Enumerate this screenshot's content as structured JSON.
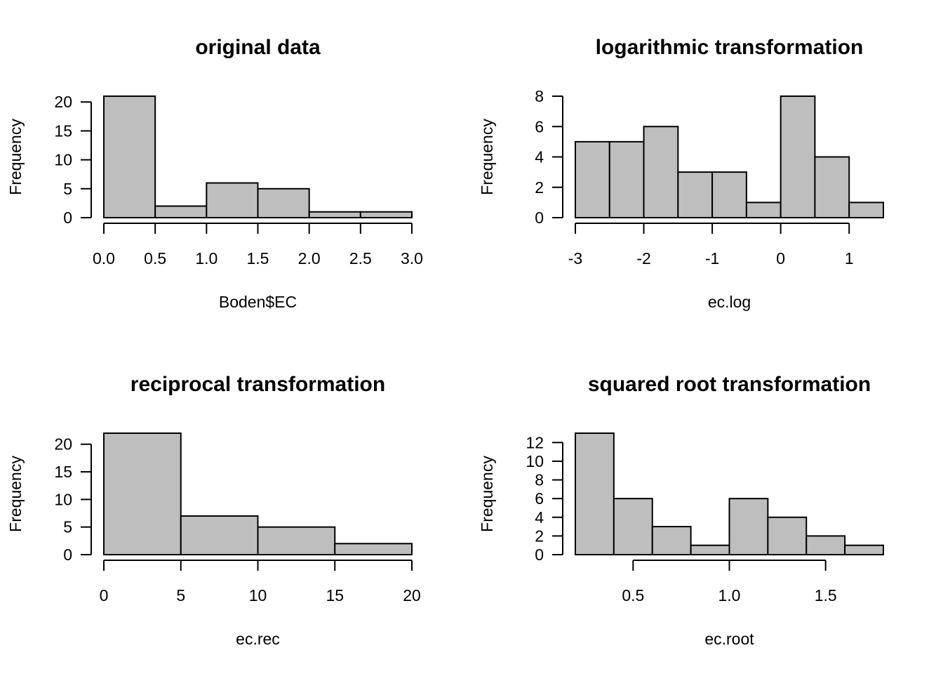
{
  "chart_data": [
    {
      "type": "bar",
      "title": "original data",
      "xlabel": "Boden$EC",
      "ylabel": "Frequency",
      "breaks": [
        0.0,
        0.5,
        1.0,
        1.5,
        2.0,
        2.5,
        3.0
      ],
      "values": [
        21,
        2,
        6,
        5,
        1,
        1
      ],
      "xticks": [
        0.0,
        0.5,
        1.0,
        1.5,
        2.0,
        2.5,
        3.0
      ],
      "xtick_labels": [
        "0.0",
        "0.5",
        "1.0",
        "1.5",
        "2.0",
        "2.5",
        "3.0"
      ],
      "yticks": [
        0,
        5,
        10,
        15,
        20
      ],
      "ytick_labels": [
        "0",
        "5",
        "10",
        "15",
        "20"
      ],
      "xlim": [
        0.0,
        3.0
      ],
      "ylim": [
        0,
        21
      ]
    },
    {
      "type": "bar",
      "title": "logarithmic transformation",
      "xlabel": "ec.log",
      "ylabel": "Frequency",
      "breaks": [
        -3.0,
        -2.5,
        -2.0,
        -1.5,
        -1.0,
        -0.5,
        0.0,
        0.5,
        1.0,
        1.5
      ],
      "values": [
        5,
        5,
        6,
        3,
        3,
        1,
        8,
        4,
        1
      ],
      "xticks": [
        -3,
        -2,
        -1,
        0,
        1
      ],
      "xtick_labels": [
        "-3",
        "-2",
        "-1",
        "0",
        "1"
      ],
      "yticks": [
        0,
        2,
        4,
        6,
        8
      ],
      "ytick_labels": [
        "0",
        "2",
        "4",
        "6",
        "8"
      ],
      "xlim": [
        -3.0,
        1.5
      ],
      "ylim": [
        0,
        8
      ]
    },
    {
      "type": "bar",
      "title": "reciprocal transformation",
      "xlabel": "ec.rec",
      "ylabel": "Frequency",
      "breaks": [
        0,
        5,
        10,
        15,
        20
      ],
      "values": [
        22,
        7,
        5,
        2
      ],
      "xticks": [
        0,
        5,
        10,
        15,
        20
      ],
      "xtick_labels": [
        "0",
        "5",
        "10",
        "15",
        "20"
      ],
      "yticks": [
        0,
        5,
        10,
        15,
        20
      ],
      "ytick_labels": [
        "0",
        "5",
        "10",
        "15",
        "20"
      ],
      "xlim": [
        0,
        20
      ],
      "ylim": [
        0,
        22
      ]
    },
    {
      "type": "bar",
      "title": "squared root transformation",
      "xlabel": "ec.root",
      "ylabel": "Frequency",
      "breaks": [
        0.2,
        0.4,
        0.6,
        0.8,
        1.0,
        1.2,
        1.4,
        1.6,
        1.8
      ],
      "values": [
        13,
        6,
        3,
        1,
        6,
        4,
        2,
        1
      ],
      "xticks": [
        0.5,
        1.0,
        1.5
      ],
      "xtick_labels": [
        "0.5",
        "1.0",
        "1.5"
      ],
      "yticks": [
        0,
        2,
        4,
        6,
        8,
        10,
        12
      ],
      "ytick_labels": [
        "0",
        "2",
        "4",
        "6",
        "8",
        "10",
        "12"
      ],
      "xlim": [
        0.2,
        1.8
      ],
      "ylim": [
        0,
        13
      ]
    }
  ]
}
